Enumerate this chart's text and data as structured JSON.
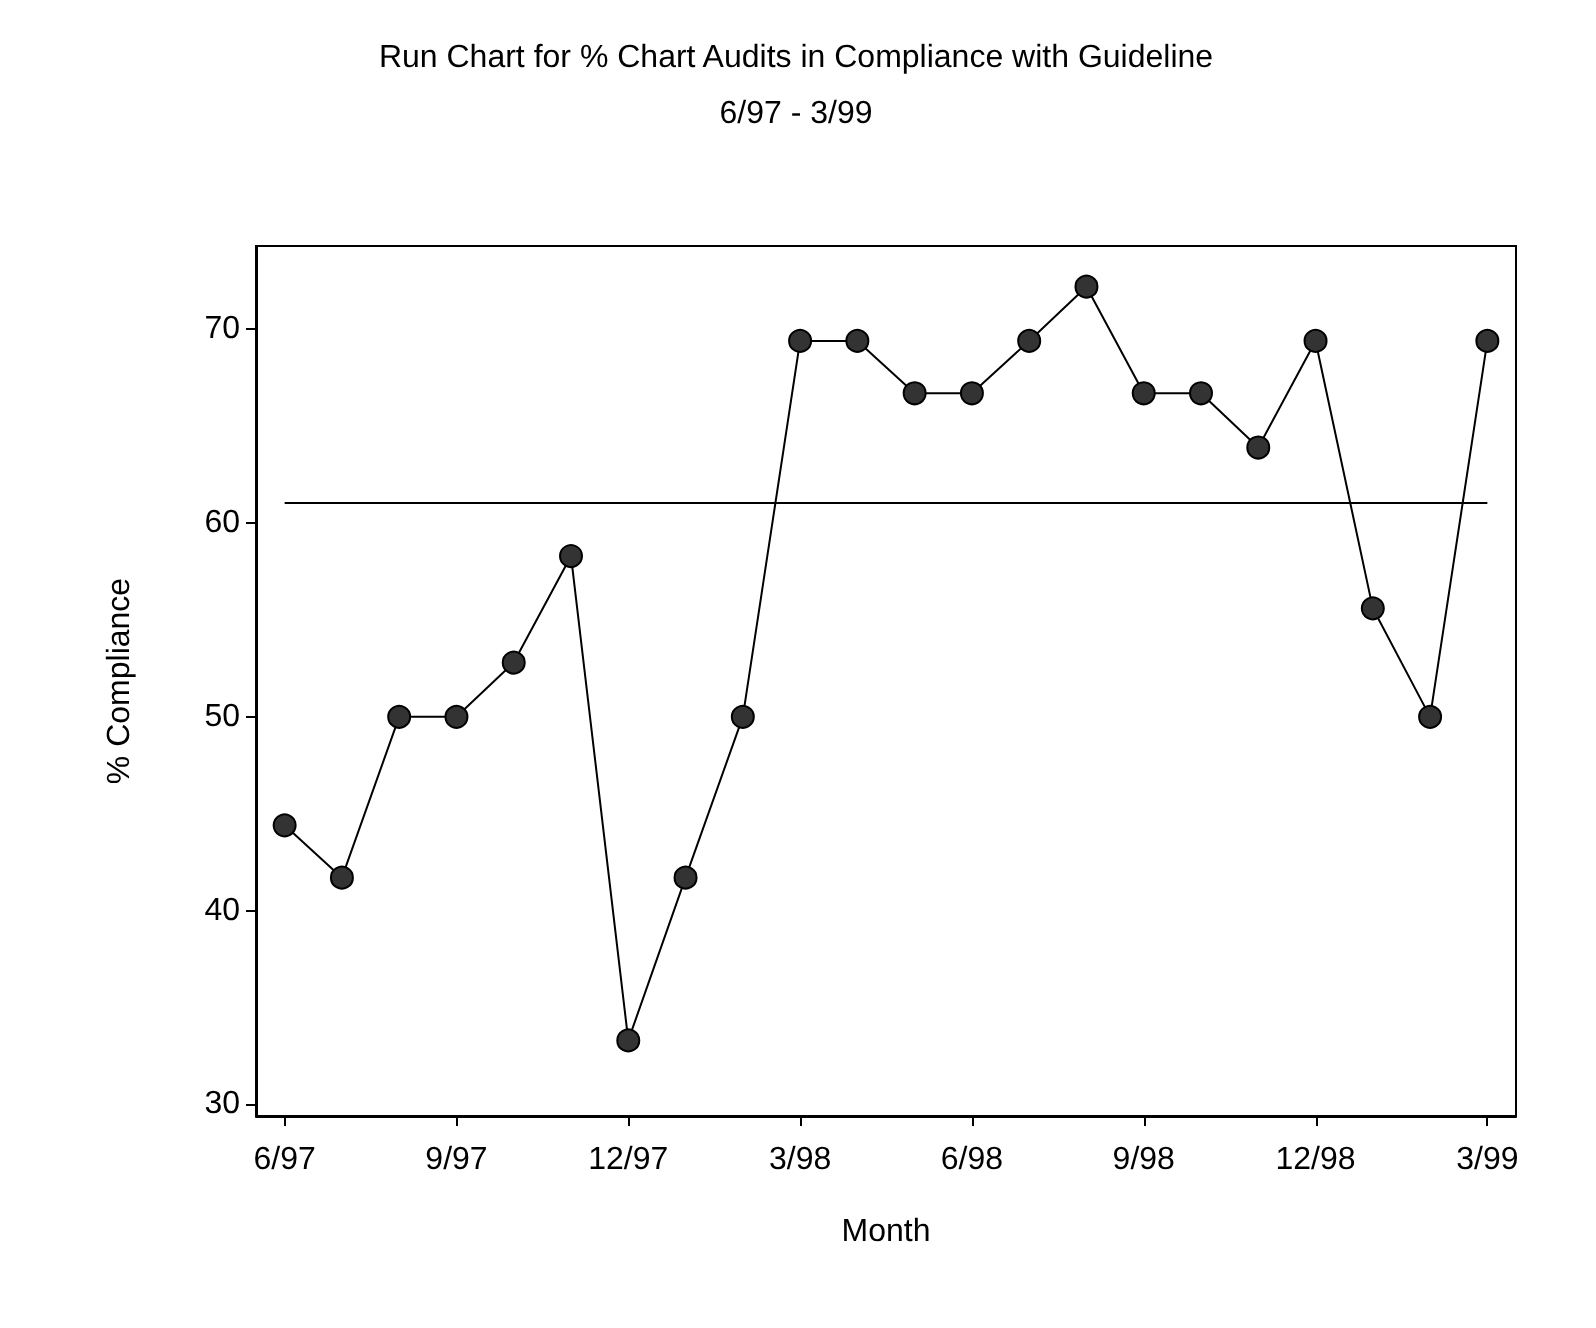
{
  "chart_data": {
    "type": "line",
    "title": "Run Chart for % Chart Audits in Compliance with Guideline",
    "subtitle": "6/97 - 3/99",
    "xlabel": "Month",
    "ylabel": "% Compliance",
    "categories": [
      "6/97",
      null,
      null,
      "9/97",
      null,
      null,
      "12/97",
      null,
      null,
      "3/98",
      null,
      null,
      "6/98",
      null,
      null,
      "9/98",
      null,
      null,
      "12/98",
      null,
      null,
      "3/99"
    ],
    "series": [
      {
        "color": "#000000",
        "values": [
          44.4,
          41.7,
          50,
          50,
          52.8,
          58.3,
          33.3,
          41.7,
          50,
          69.4,
          69.4,
          66.7,
          66.7,
          69.4,
          72.2,
          66.7,
          66.7,
          63.9,
          69.4,
          55.6,
          50,
          69.4
        ]
      }
    ],
    "ylim": [
      29.4,
      74.3
    ],
    "yticks": [
      30,
      40,
      50,
      60,
      70
    ],
    "ref_lines": [
      {
        "axis": "y",
        "value": 61.1,
        "color": "#000000"
      }
    ],
    "marker": "circle",
    "line_style": "solid"
  }
}
